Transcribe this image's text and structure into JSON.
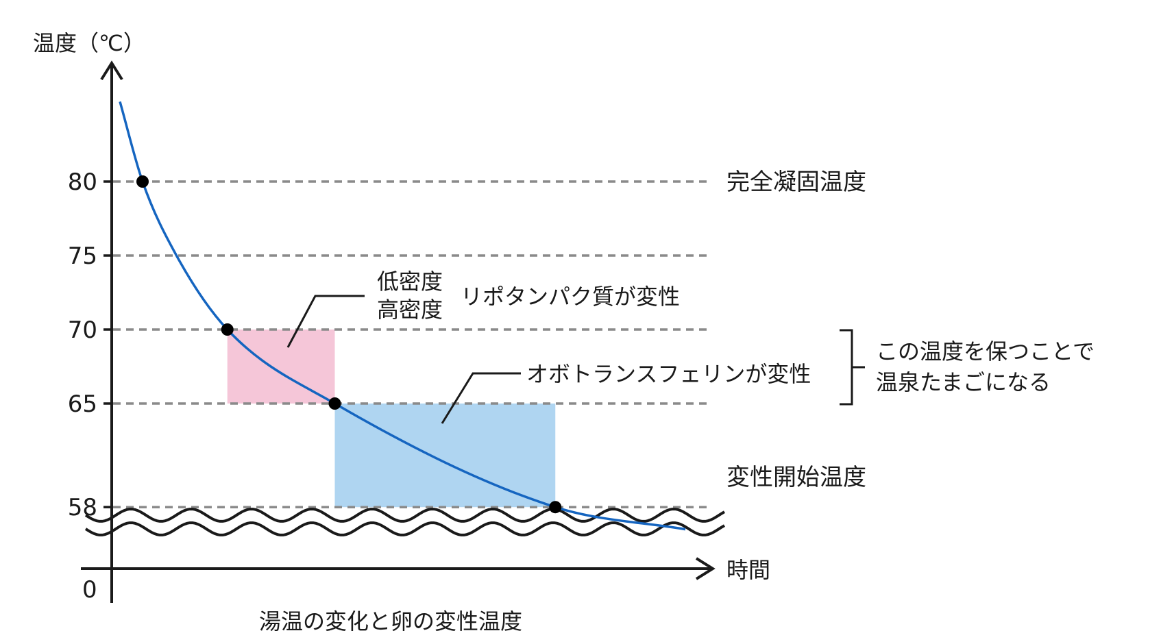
{
  "chart_data": {
    "type": "line",
    "title": "湯温の変化と卵の変性温度",
    "ylabel": "温度（℃）",
    "xlabel": "時間",
    "origin_label": "0",
    "y_ticks": [
      80,
      75,
      70,
      65,
      58
    ],
    "y_tick_labels": [
      "80",
      "75",
      "70",
      "65",
      "58"
    ],
    "y_axis_break": true,
    "grid": "dashed horizontal lines at each tick",
    "colors": {
      "curve": "#1565c0",
      "pink_region": "#f5c6d8",
      "blue_region": "#afd5f1",
      "dashed_line": "#8a8a8a",
      "axis": "#1a1a1a"
    },
    "series": [
      {
        "values": [
          {
            "t": 0.0,
            "y": 85.4
          },
          {
            "t": 0.04,
            "y": 80.0
          },
          {
            "t": 0.1,
            "y": 75.0
          },
          {
            "t": 0.19,
            "y": 70.0
          },
          {
            "t": 0.38,
            "y": 65.0
          },
          {
            "t": 0.77,
            "y": 58.0
          },
          {
            "t": 1.0,
            "y": 56.5
          }
        ]
      }
    ],
    "marked_points": [
      {
        "t": 0.04,
        "y": 80
      },
      {
        "t": 0.19,
        "y": 70
      },
      {
        "t": 0.38,
        "y": 65
      },
      {
        "t": 0.77,
        "y": 58
      }
    ],
    "regions": [
      {
        "id": "pink",
        "t_from": 0.19,
        "t_to": 0.38,
        "y_from": 65,
        "y_to": 70
      },
      {
        "id": "blue",
        "t_from": 0.38,
        "t_to": 0.77,
        "y_from": 58,
        "y_to": 65
      }
    ],
    "reference_labels": [
      {
        "y": 80,
        "text": "完全凝固温度"
      },
      {
        "y": 58,
        "text": "変性開始温度"
      }
    ],
    "annotations": {
      "pink": {
        "line1": "低密度",
        "line2": "高密度",
        "text": "リポタンパク質が変性"
      },
      "blue": {
        "text": "オボトランスフェリンが変性"
      },
      "bracket": {
        "line1": "この温度を保つことで",
        "line2": "温泉たまごになる"
      }
    }
  }
}
